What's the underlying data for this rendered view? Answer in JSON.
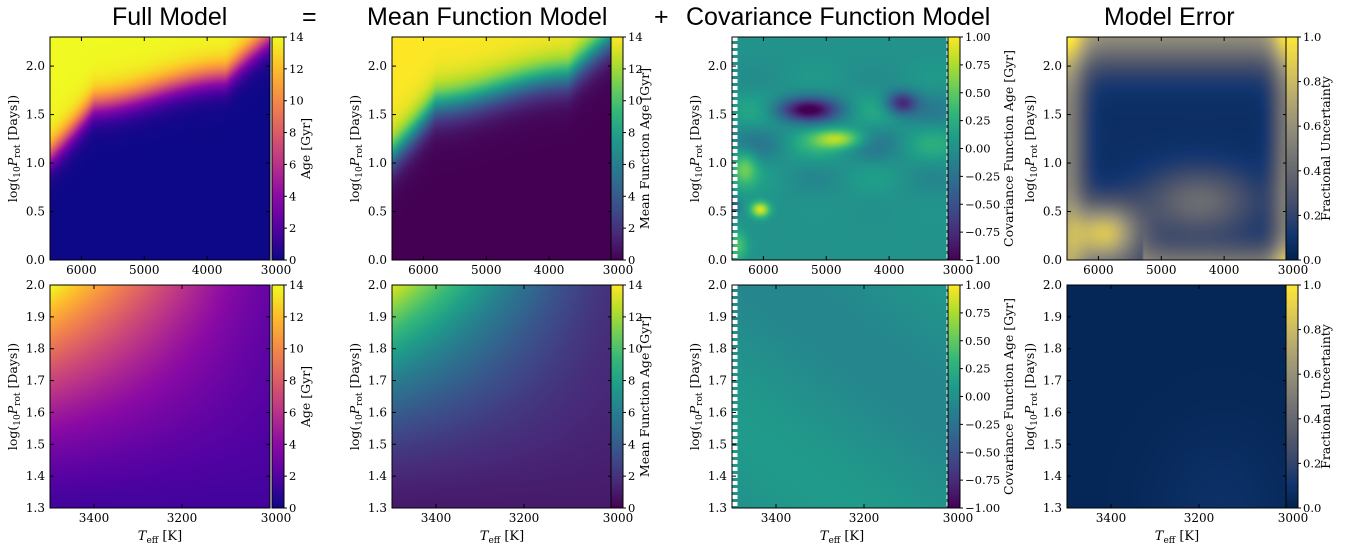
{
  "headers": {
    "full_model": "Full Model",
    "equals": "=",
    "mean_model": "Mean Function Model",
    "plus": "+",
    "cov_model": "Covariance Function Model",
    "model_error": "Model Error"
  },
  "chart_data": [
    {
      "type": "heatmap",
      "row": "top",
      "field": "full",
      "colormap": "plasma",
      "xlabel": "T_eff [K]",
      "ylabel": "log(10 P_rot [Days])",
      "xlim": [
        6500,
        3000
      ],
      "ylim": [
        0.0,
        2.3
      ],
      "xticks": [
        "6000",
        "5000",
        "4000",
        "3000"
      ],
      "yticks": [
        "0.0",
        "0.5",
        "1.0",
        "1.5",
        "2.0"
      ],
      "colorbar": {
        "label": "Age [Gyr]",
        "range": [
          0,
          14
        ],
        "ticks": [
          "0",
          "2",
          "4",
          "6",
          "8",
          "10",
          "12",
          "14"
        ]
      }
    },
    {
      "type": "heatmap",
      "row": "top",
      "field": "mean",
      "colormap": "viridis",
      "xlabel": "T_eff [K]",
      "ylabel": "log(10 P_rot [Days])",
      "xlim": [
        6500,
        3000
      ],
      "ylim": [
        0.0,
        2.3
      ],
      "xticks": [
        "6000",
        "5000",
        "4000",
        "3000"
      ],
      "yticks": [
        "0.0",
        "0.5",
        "1.0",
        "1.5",
        "2.0"
      ],
      "colorbar": {
        "label": "Mean Function Age [Gyr]",
        "range": [
          0,
          14
        ],
        "ticks": [
          "0",
          "2",
          "4",
          "6",
          "8",
          "10",
          "12",
          "14"
        ]
      }
    },
    {
      "type": "heatmap",
      "row": "top",
      "field": "cov",
      "colormap": "viridis",
      "xlabel": "T_eff [K]",
      "ylabel": "log(10 P_rot [Days])",
      "xlim": [
        6500,
        3000
      ],
      "ylim": [
        0.0,
        2.3
      ],
      "xticks": [
        "6000",
        "5000",
        "4000",
        "3000"
      ],
      "yticks": [
        "0.0",
        "0.5",
        "1.0",
        "1.5",
        "2.0"
      ],
      "colorbar": {
        "label": "Covariance Function Age [Gyr]",
        "range": [
          -1.0,
          1.0
        ],
        "ticks": [
          "−1.00",
          "−0.75",
          "−0.50",
          "−0.25",
          "0.00",
          "0.25",
          "0.50",
          "0.75",
          "1.00"
        ]
      }
    },
    {
      "type": "heatmap",
      "row": "top",
      "field": "err",
      "colormap": "cividis",
      "xlabel": "T_eff [K]",
      "ylabel": "log(10 P_rot [Days])",
      "xlim": [
        6500,
        3000
      ],
      "ylim": [
        0.0,
        2.3
      ],
      "xticks": [
        "6000",
        "5000",
        "4000",
        "3000"
      ],
      "yticks": [
        "0.0",
        "0.5",
        "1.0",
        "1.5",
        "2.0"
      ],
      "colorbar": {
        "label": "Fractional Uncertainty",
        "range": [
          0.0,
          1.0
        ],
        "ticks": [
          "0.0",
          "0.2",
          "0.4",
          "0.6",
          "0.8",
          "1.0"
        ]
      }
    },
    {
      "type": "heatmap",
      "row": "bottom",
      "field": "full",
      "colormap": "plasma",
      "xlabel": "T_eff [K]",
      "ylabel": "log(10 P_rot [Days])",
      "xlim": [
        3500,
        3000
      ],
      "ylim": [
        1.3,
        2.0
      ],
      "xticks": [
        "3400",
        "3200",
        "3000"
      ],
      "yticks": [
        "1.3",
        "1.4",
        "1.5",
        "1.6",
        "1.7",
        "1.8",
        "1.9",
        "2.0"
      ],
      "colorbar": {
        "label": "Age [Gyr]",
        "range": [
          0,
          14
        ],
        "ticks": [
          "0",
          "2",
          "4",
          "6",
          "8",
          "10",
          "12",
          "14"
        ]
      }
    },
    {
      "type": "heatmap",
      "row": "bottom",
      "field": "mean",
      "colormap": "viridis",
      "xlabel": "T_eff [K]",
      "ylabel": "log(10 P_rot [Days])",
      "xlim": [
        3500,
        3000
      ],
      "ylim": [
        1.3,
        2.0
      ],
      "xticks": [
        "3400",
        "3200",
        "3000"
      ],
      "yticks": [
        "1.3",
        "1.4",
        "1.5",
        "1.6",
        "1.7",
        "1.8",
        "1.9",
        "2.0"
      ],
      "colorbar": {
        "label": "Mean Function Age [Gyr]",
        "range": [
          0,
          14
        ],
        "ticks": [
          "0",
          "2",
          "4",
          "6",
          "8",
          "10",
          "12",
          "14"
        ]
      }
    },
    {
      "type": "heatmap",
      "row": "bottom",
      "field": "cov",
      "colormap": "viridis",
      "xlabel": "T_eff [K]",
      "ylabel": "log(10 P_rot [Days])",
      "xlim": [
        3500,
        3000
      ],
      "ylim": [
        1.3,
        2.0
      ],
      "xticks": [
        "3400",
        "3200",
        "3000"
      ],
      "yticks": [
        "1.3",
        "1.4",
        "1.5",
        "1.6",
        "1.7",
        "1.8",
        "1.9",
        "2.0"
      ],
      "colorbar": {
        "label": "Covariance Function Age [Gyr]",
        "range": [
          -1.0,
          1.0
        ],
        "ticks": [
          "−1.00",
          "−0.75",
          "−0.50",
          "−0.25",
          "0.00",
          "0.25",
          "0.50",
          "0.75",
          "1.00"
        ]
      }
    },
    {
      "type": "heatmap",
      "row": "bottom",
      "field": "err",
      "colormap": "cividis",
      "xlabel": "T_eff [K]",
      "ylabel": "log(10 P_rot [Days])",
      "xlim": [
        3500,
        3000
      ],
      "ylim": [
        1.3,
        2.0
      ],
      "xticks": [
        "3400",
        "3200",
        "3000"
      ],
      "yticks": [
        "1.3",
        "1.4",
        "1.5",
        "1.6",
        "1.7",
        "1.8",
        "1.9",
        "2.0"
      ],
      "colorbar": {
        "label": "Fractional Uncertainty",
        "range": [
          0.0,
          1.0
        ],
        "ticks": [
          "0.0",
          "0.2",
          "0.4",
          "0.6",
          "0.8",
          "1.0"
        ]
      }
    }
  ]
}
